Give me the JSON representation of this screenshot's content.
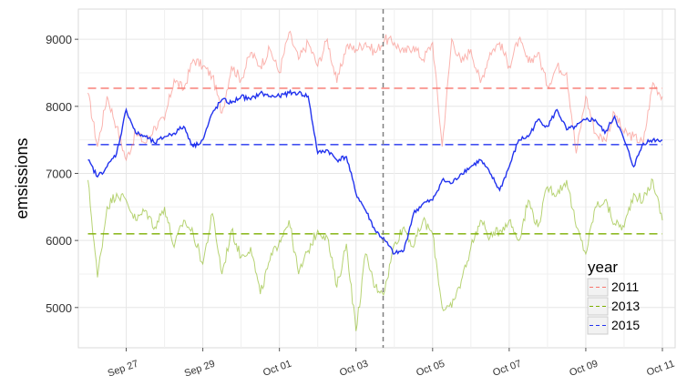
{
  "chart_data": {
    "type": "line",
    "title": "",
    "xlabel": "",
    "ylabel": "emsissions",
    "x_tick_labels": [
      "Sep 27",
      "Sep 29",
      "Oct 01",
      "Oct 03",
      "Oct 05",
      "Oct 07",
      "Oct 09",
      "Oct 11"
    ],
    "x_tick_dates": [
      "2013-09-27",
      "2013-09-29",
      "2013-10-01",
      "2013-10-03",
      "2013-10-05",
      "2013-10-07",
      "2013-10-09",
      "2013-10-11"
    ],
    "x_range": [
      "2013-09-25T18:00",
      "2013-10-11T08:00"
    ],
    "y_ticks": [
      5000,
      6000,
      7000,
      8000,
      9000
    ],
    "ylim": [
      4400,
      9450
    ],
    "vline_date": "2013-10-03T17:00",
    "grid": true,
    "legend": {
      "title": "year",
      "placement": "bottom-right",
      "labels": [
        "2011",
        "2013",
        "2015"
      ]
    },
    "colors": {
      "2011": "#f8766d",
      "2013": "#7cae00",
      "2015": "#2233ee"
    },
    "series": [
      {
        "name": "2011",
        "color": "#f8766d",
        "mean": 8270,
        "x": [
          "2013-09-26T00:00",
          "2013-09-26T06:00",
          "2013-09-26T12:00",
          "2013-09-26T18:00",
          "2013-09-27T00:00",
          "2013-09-27T06:00",
          "2013-09-27T12:00",
          "2013-09-27T18:00",
          "2013-09-28T00:00",
          "2013-09-28T06:00",
          "2013-09-28T12:00",
          "2013-09-28T18:00",
          "2013-09-29T00:00",
          "2013-09-29T06:00",
          "2013-09-29T12:00",
          "2013-09-29T18:00",
          "2013-09-30T00:00",
          "2013-09-30T06:00",
          "2013-09-30T12:00",
          "2013-09-30T18:00",
          "2013-10-01T00:00",
          "2013-10-01T06:00",
          "2013-10-01T12:00",
          "2013-10-01T18:00",
          "2013-10-02T00:00",
          "2013-10-02T06:00",
          "2013-10-02T12:00",
          "2013-10-02T18:00",
          "2013-10-03T00:00",
          "2013-10-03T06:00",
          "2013-10-03T12:00",
          "2013-10-03T18:00",
          "2013-10-04T00:00",
          "2013-10-04T06:00",
          "2013-10-04T12:00",
          "2013-10-04T18:00",
          "2013-10-05T00:00",
          "2013-10-05T06:00",
          "2013-10-05T12:00",
          "2013-10-05T18:00",
          "2013-10-06T00:00",
          "2013-10-06T06:00",
          "2013-10-06T12:00",
          "2013-10-06T18:00",
          "2013-10-07T00:00",
          "2013-10-07T06:00",
          "2013-10-07T12:00",
          "2013-10-07T18:00",
          "2013-10-08T00:00",
          "2013-10-08T06:00",
          "2013-10-08T12:00",
          "2013-10-08T18:00",
          "2013-10-09T00:00",
          "2013-10-09T06:00",
          "2013-10-09T12:00",
          "2013-10-09T18:00",
          "2013-10-10T00:00",
          "2013-10-10T06:00",
          "2013-10-10T12:00",
          "2013-10-10T18:00",
          "2013-10-11T00:00"
        ],
        "values": [
          8200,
          7400,
          8150,
          7700,
          7200,
          7600,
          7450,
          7700,
          7800,
          8400,
          8250,
          8700,
          8600,
          8450,
          7900,
          8600,
          8400,
          8800,
          8600,
          8850,
          8500,
          9100,
          8700,
          8950,
          8600,
          9000,
          8350,
          8900,
          8850,
          8950,
          8800,
          9000,
          8950,
          8800,
          8900,
          8700,
          8950,
          7400,
          9000,
          8650,
          8850,
          8350,
          8800,
          8950,
          8600,
          9000,
          8650,
          8800,
          8300,
          8600,
          8500,
          7300,
          8150,
          7600,
          7500,
          7900,
          7600,
          7550,
          7450,
          8350,
          8150
        ]
      },
      {
        "name": "2013",
        "color": "#7cae00",
        "mean": 6100,
        "x": [
          "2013-09-26T00:00",
          "2013-09-26T06:00",
          "2013-09-26T12:00",
          "2013-09-26T18:00",
          "2013-09-27T00:00",
          "2013-09-27T06:00",
          "2013-09-27T12:00",
          "2013-09-27T18:00",
          "2013-09-28T00:00",
          "2013-09-28T06:00",
          "2013-09-28T12:00",
          "2013-09-28T18:00",
          "2013-09-29T00:00",
          "2013-09-29T06:00",
          "2013-09-29T12:00",
          "2013-09-29T18:00",
          "2013-09-30T00:00",
          "2013-09-30T06:00",
          "2013-09-30T12:00",
          "2013-09-30T18:00",
          "2013-10-01T00:00",
          "2013-10-01T06:00",
          "2013-10-01T12:00",
          "2013-10-01T18:00",
          "2013-10-02T00:00",
          "2013-10-02T06:00",
          "2013-10-02T12:00",
          "2013-10-02T18:00",
          "2013-10-03T00:00",
          "2013-10-03T06:00",
          "2013-10-03T12:00",
          "2013-10-03T18:00",
          "2013-10-04T00:00",
          "2013-10-04T06:00",
          "2013-10-04T12:00",
          "2013-10-04T18:00",
          "2013-10-05T00:00",
          "2013-10-05T06:00",
          "2013-10-05T12:00",
          "2013-10-05T18:00",
          "2013-10-06T00:00",
          "2013-10-06T06:00",
          "2013-10-06T12:00",
          "2013-10-06T18:00",
          "2013-10-07T00:00",
          "2013-10-07T06:00",
          "2013-10-07T12:00",
          "2013-10-07T18:00",
          "2013-10-08T00:00",
          "2013-10-08T06:00",
          "2013-10-08T12:00",
          "2013-10-08T18:00",
          "2013-10-09T00:00",
          "2013-10-09T06:00",
          "2013-10-09T12:00",
          "2013-10-09T18:00",
          "2013-10-10T00:00",
          "2013-10-10T06:00",
          "2013-10-10T12:00",
          "2013-10-10T18:00",
          "2013-10-11T00:00"
        ],
        "values": [
          6900,
          5450,
          6500,
          6700,
          6600,
          6300,
          6450,
          6200,
          6500,
          5900,
          6300,
          6100,
          5650,
          6400,
          5500,
          6150,
          5750,
          5900,
          5200,
          5700,
          6000,
          6300,
          5500,
          5850,
          6150,
          6050,
          5300,
          5950,
          4650,
          5800,
          5300,
          5250,
          5950,
          6200,
          5900,
          6300,
          6100,
          5000,
          5000,
          5400,
          5900,
          6300,
          6050,
          6150,
          6300,
          6000,
          6600,
          6200,
          6800,
          6700,
          6900,
          6200,
          5800,
          6500,
          6600,
          6250,
          6200,
          6700,
          6600,
          6900,
          6300
        ]
      },
      {
        "name": "2015",
        "color": "#2233ee",
        "mean": 7430,
        "x": [
          "2013-09-26T00:00",
          "2013-09-26T06:00",
          "2013-09-26T12:00",
          "2013-09-26T18:00",
          "2013-09-27T00:00",
          "2013-09-27T06:00",
          "2013-09-27T12:00",
          "2013-09-27T18:00",
          "2013-09-28T00:00",
          "2013-09-28T06:00",
          "2013-09-28T12:00",
          "2013-09-28T18:00",
          "2013-09-29T00:00",
          "2013-09-29T06:00",
          "2013-09-29T12:00",
          "2013-09-29T18:00",
          "2013-09-30T00:00",
          "2013-09-30T06:00",
          "2013-09-30T12:00",
          "2013-09-30T18:00",
          "2013-10-01T00:00",
          "2013-10-01T06:00",
          "2013-10-01T12:00",
          "2013-10-01T18:00",
          "2013-10-02T00:00",
          "2013-10-02T06:00",
          "2013-10-02T12:00",
          "2013-10-02T18:00",
          "2013-10-03T00:00",
          "2013-10-03T06:00",
          "2013-10-03T12:00",
          "2013-10-03T18:00",
          "2013-10-04T00:00",
          "2013-10-04T06:00",
          "2013-10-04T12:00",
          "2013-10-04T18:00",
          "2013-10-05T00:00",
          "2013-10-05T06:00",
          "2013-10-05T12:00",
          "2013-10-05T18:00",
          "2013-10-06T00:00",
          "2013-10-06T06:00",
          "2013-10-06T12:00",
          "2013-10-06T18:00",
          "2013-10-07T00:00",
          "2013-10-07T06:00",
          "2013-10-07T12:00",
          "2013-10-07T18:00",
          "2013-10-08T00:00",
          "2013-10-08T06:00",
          "2013-10-08T12:00",
          "2013-10-08T18:00",
          "2013-10-09T00:00",
          "2013-10-09T06:00",
          "2013-10-09T12:00",
          "2013-10-09T18:00",
          "2013-10-10T00:00",
          "2013-10-10T06:00",
          "2013-10-10T12:00",
          "2013-10-10T18:00",
          "2013-10-11T00:00"
        ],
        "values": [
          7200,
          6950,
          7100,
          7300,
          7950,
          7600,
          7550,
          7450,
          7550,
          7600,
          7700,
          7400,
          7500,
          7900,
          8100,
          8050,
          8150,
          8100,
          8200,
          8150,
          8150,
          8200,
          8200,
          8150,
          7300,
          7350,
          7200,
          7250,
          6700,
          6450,
          6150,
          6000,
          5800,
          5850,
          6400,
          6550,
          6600,
          6900,
          6850,
          7000,
          7100,
          7200,
          7000,
          6750,
          7100,
          7500,
          7550,
          7800,
          7700,
          7950,
          7650,
          7700,
          7800,
          7800,
          7600,
          7850,
          7500,
          7100,
          7450,
          7500,
          7500
        ]
      }
    ]
  }
}
